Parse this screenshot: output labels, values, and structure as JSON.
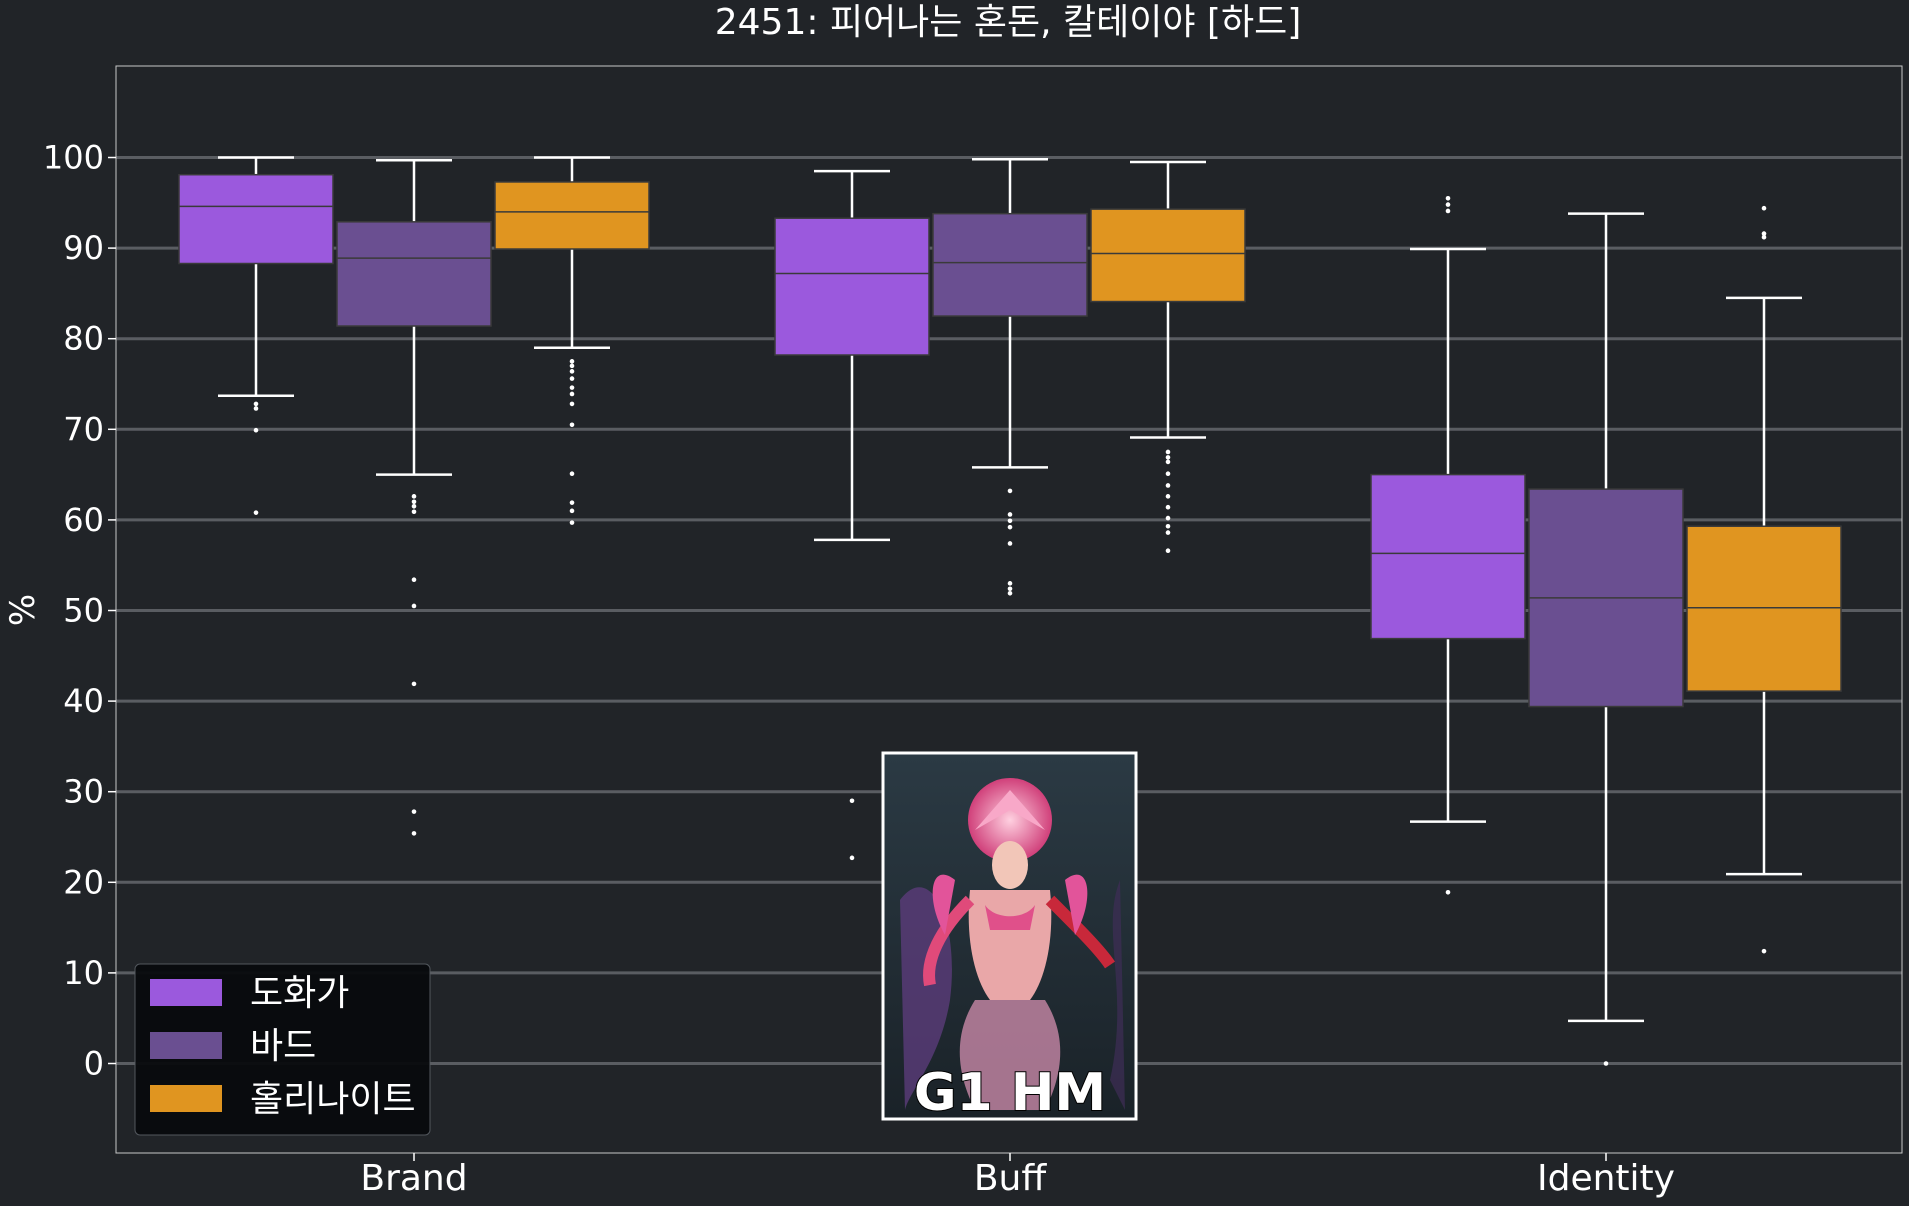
{
  "chart_data": {
    "type": "box",
    "title": "2451: 피어나는 혼돈, 칼테이야 [하드]",
    "xlabel": "",
    "ylabel": "%",
    "ylim": [
      -10,
      110
    ],
    "yticks": [
      0,
      10,
      20,
      30,
      40,
      50,
      60,
      70,
      80,
      90,
      100
    ],
    "grid": "horizontal",
    "categories": [
      "Brand",
      "Buff",
      "Identity"
    ],
    "legend_position": "bottom-left",
    "series": [
      {
        "name": "도화가",
        "color": "#9b59dd",
        "boxes": [
          {
            "whislo": 73.7,
            "q1": 88.3,
            "med": 94.6,
            "q3": 98.1,
            "whishi": 100.0,
            "fliers": [
              72.8,
              72.3,
              69.9,
              60.8
            ]
          },
          {
            "whislo": 57.8,
            "q1": 78.2,
            "med": 87.2,
            "q3": 93.3,
            "whishi": 98.5,
            "fliers": [
              29.0,
              22.7
            ]
          },
          {
            "whislo": 26.7,
            "q1": 46.9,
            "med": 56.3,
            "q3": 65.0,
            "whishi": 89.9,
            "fliers": [
              95.5,
              94.8,
              94.1,
              18.9
            ]
          }
        ]
      },
      {
        "name": "바드",
        "color": "#6a4f91",
        "boxes": [
          {
            "whislo": 65.0,
            "q1": 81.4,
            "med": 88.9,
            "q3": 92.9,
            "whishi": 99.7,
            "fliers": [
              62.6,
              62.0,
              61.5,
              60.9,
              53.4,
              50.5,
              41.9,
              27.8,
              25.4
            ]
          },
          {
            "whislo": 65.8,
            "q1": 82.5,
            "med": 88.4,
            "q3": 93.8,
            "whishi": 99.8,
            "fliers": [
              63.2,
              60.6,
              59.9,
              59.2,
              57.4,
              53.0,
              52.4,
              51.9
            ]
          },
          {
            "whislo": 4.7,
            "q1": 39.4,
            "med": 51.4,
            "q3": 63.4,
            "whishi": 93.8,
            "fliers": [
              0.0
            ]
          }
        ]
      },
      {
        "name": "홀리나이트",
        "color": "#e09520",
        "boxes": [
          {
            "whislo": 79.0,
            "q1": 89.9,
            "med": 94.0,
            "q3": 97.3,
            "whishi": 100.0,
            "fliers": [
              77.5,
              77.0,
              76.4,
              75.6,
              74.6,
              73.9,
              72.8,
              70.5,
              65.1,
              61.9,
              61.0,
              59.7
            ]
          },
          {
            "whislo": 69.1,
            "q1": 84.1,
            "med": 89.4,
            "q3": 94.3,
            "whishi": 99.5,
            "fliers": [
              67.5,
              66.9,
              66.4,
              65.1,
              63.8,
              62.6,
              61.4,
              60.2,
              59.3,
              58.6,
              56.6
            ]
          },
          {
            "whislo": 20.9,
            "q1": 41.1,
            "med": 50.3,
            "q3": 59.3,
            "whishi": 84.5,
            "fliers": [
              94.4,
              91.6,
              91.2,
              12.4
            ]
          }
        ]
      }
    ]
  },
  "inset": {
    "caption": "G1 HM",
    "image": "boss-character-portrait"
  },
  "colors": {
    "background": "#212428",
    "grid": "#5a5d62",
    "whisker": "#ffffff",
    "legend_bg": "#080a0d"
  }
}
